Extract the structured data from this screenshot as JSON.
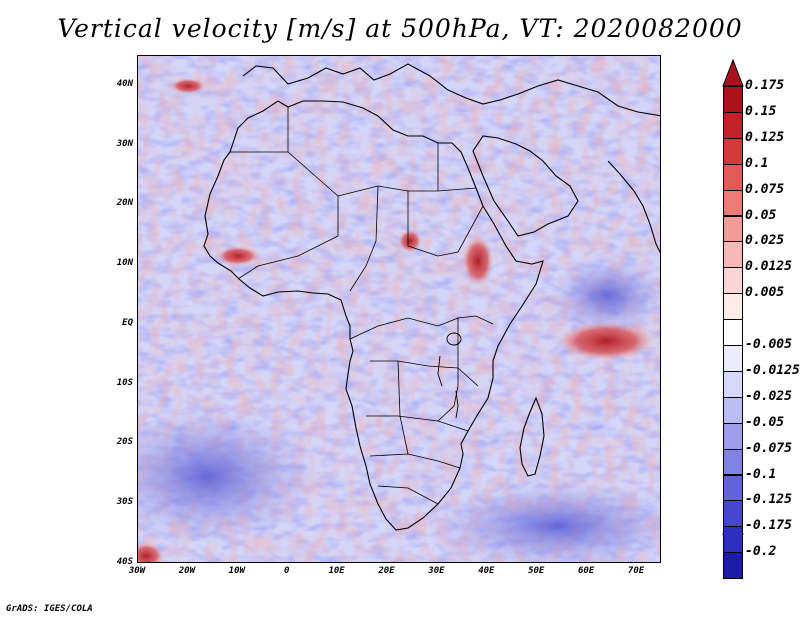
{
  "title": "Vertical velocity [m/s] at 500hPa, VT: 2020082000",
  "map": {
    "region": "Africa",
    "field": "Vertical velocity",
    "level": "500hPa",
    "lon_range": [
      -30,
      75
    ],
    "lat_range": [
      -40,
      45
    ],
    "lat_ticks": [
      {
        "value": 40,
        "label": "40N"
      },
      {
        "value": 30,
        "label": "30N"
      },
      {
        "value": 20,
        "label": "20N"
      },
      {
        "value": 10,
        "label": "10N"
      },
      {
        "value": 0,
        "label": "EQ"
      },
      {
        "value": -10,
        "label": "10S"
      },
      {
        "value": -20,
        "label": "20S"
      },
      {
        "value": -30,
        "label": "30S"
      },
      {
        "value": -40,
        "label": "40S"
      }
    ],
    "lon_ticks": [
      {
        "value": -30,
        "label": "30W"
      },
      {
        "value": -20,
        "label": "20W"
      },
      {
        "value": -10,
        "label": "10W"
      },
      {
        "value": 0,
        "label": "0"
      },
      {
        "value": 10,
        "label": "10E"
      },
      {
        "value": 20,
        "label": "20E"
      },
      {
        "value": 30,
        "label": "30E"
      },
      {
        "value": 40,
        "label": "40E"
      },
      {
        "value": 50,
        "label": "50E"
      },
      {
        "value": 60,
        "label": "60E"
      },
      {
        "value": 70,
        "label": "70E"
      }
    ]
  },
  "colorbar": {
    "levels": [
      {
        "label": "0.175",
        "color": "#a9141c"
      },
      {
        "label": "0.15",
        "color": "#c42027"
      },
      {
        "label": "0.125",
        "color": "#d53a3b"
      },
      {
        "label": "0.1",
        "color": "#e15b58"
      },
      {
        "label": "0.075",
        "color": "#ea7b77"
      },
      {
        "label": "0.05",
        "color": "#f19b97"
      },
      {
        "label": "0.025",
        "color": "#f6b9b6"
      },
      {
        "label": "0.0125",
        "color": "#fad5d3"
      },
      {
        "label": "0.005",
        "color": "#fdecea"
      },
      {
        "label": "",
        "color": "#ffffff"
      },
      {
        "label": "-0.005",
        "color": "#ececfd"
      },
      {
        "label": "-0.0125",
        "color": "#d6d7fa"
      },
      {
        "label": "-0.025",
        "color": "#bbbcf4"
      },
      {
        "label": "-0.05",
        "color": "#9d9fed"
      },
      {
        "label": "-0.075",
        "color": "#8082e4"
      },
      {
        "label": "-0.1",
        "color": "#6265d9"
      },
      {
        "label": "-0.125",
        "color": "#4648cc"
      },
      {
        "label": "-0.175",
        "color": "#2d2fbd"
      },
      {
        "label": "-0.2",
        "color": "#1c1ca8"
      }
    ],
    "top_arrow_color": "#a9141c",
    "bottom_arrow_color": "#1c1ca8"
  },
  "credit": "GrADS: IGES/COLA"
}
